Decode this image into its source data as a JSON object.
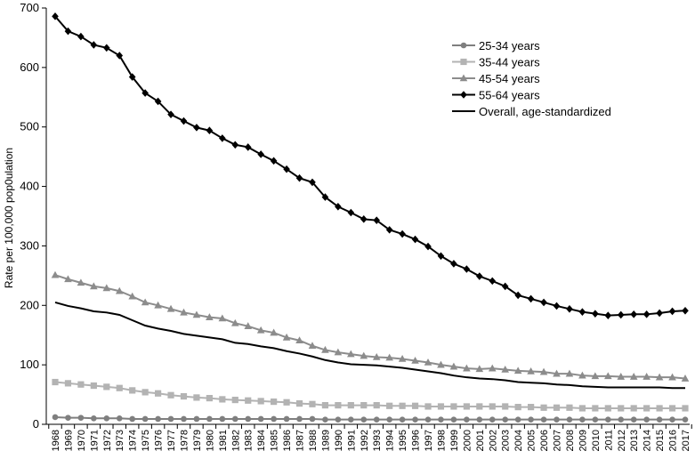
{
  "chart_data": {
    "type": "line",
    "title": "",
    "xlabel": "",
    "ylabel": "Rate per 100,000 pop0ulation",
    "ylim": [
      0,
      700
    ],
    "yticks": [
      0,
      100,
      200,
      300,
      400,
      500,
      600,
      700
    ],
    "grid": false,
    "legend_position": "top-right",
    "x": [
      "1968",
      "1969",
      "1970",
      "1971",
      "1972",
      "1973",
      "1974",
      "1975",
      "1976",
      "1977",
      "1978",
      "1979",
      "1980",
      "1981",
      "1982",
      "1983",
      "1984",
      "1985",
      "1986",
      "1987",
      "1988",
      "1989",
      "1990",
      "1991",
      "1992",
      "1993",
      "1994",
      "1995",
      "1996",
      "1997",
      "1998",
      "1999",
      "2000",
      "2001",
      "2002",
      "2003",
      "2004",
      "2005",
      "2006",
      "2007",
      "2008",
      "2009",
      "2010",
      "2011",
      "2012",
      "2013",
      "2014",
      "2015",
      "2016",
      "2017"
    ],
    "series": [
      {
        "name": "25-34 years",
        "color": "#7f7f7f",
        "marker": "circle",
        "values": [
          12,
          11,
          11,
          10,
          10,
          10,
          9,
          9,
          9,
          9,
          9,
          9,
          9,
          9,
          9,
          9,
          9,
          9,
          9,
          9,
          9,
          8,
          8,
          8,
          8,
          8,
          8,
          8,
          8,
          8,
          8,
          8,
          8,
          8,
          8,
          8,
          8,
          8,
          8,
          8,
          8,
          8,
          8,
          8,
          8,
          8,
          8,
          8,
          8,
          8
        ]
      },
      {
        "name": "35-44 years",
        "color": "#b3b3b3",
        "marker": "square",
        "values": [
          71,
          69,
          67,
          65,
          63,
          61,
          57,
          54,
          52,
          49,
          47,
          45,
          44,
          42,
          41,
          40,
          39,
          38,
          37,
          35,
          34,
          32,
          32,
          32,
          32,
          32,
          31,
          31,
          31,
          30,
          30,
          30,
          30,
          30,
          30,
          30,
          29,
          29,
          28,
          28,
          28,
          27,
          27,
          27,
          27,
          27,
          27,
          27,
          27,
          27
        ]
      },
      {
        "name": "45-54 years",
        "color": "#8c8c8c",
        "marker": "triangle",
        "values": [
          251,
          244,
          238,
          232,
          229,
          224,
          215,
          205,
          200,
          194,
          188,
          184,
          180,
          178,
          170,
          165,
          158,
          154,
          146,
          141,
          132,
          125,
          121,
          118,
          115,
          113,
          112,
          110,
          107,
          104,
          100,
          97,
          94,
          93,
          94,
          92,
          90,
          89,
          88,
          85,
          85,
          82,
          81,
          81,
          80,
          80,
          80,
          79,
          79,
          77
        ]
      },
      {
        "name": "55-64 years",
        "color": "#000000",
        "marker": "diamond",
        "values": [
          686,
          661,
          652,
          638,
          633,
          620,
          584,
          557,
          543,
          521,
          510,
          499,
          494,
          481,
          470,
          466,
          454,
          443,
          429,
          414,
          407,
          382,
          366,
          356,
          345,
          343,
          327,
          320,
          311,
          299,
          283,
          270,
          261,
          249,
          241,
          232,
          217,
          211,
          205,
          199,
          194,
          189,
          186,
          183,
          184,
          185,
          185,
          187,
          190,
          191
        ]
      },
      {
        "name": "Overall, age-standardized",
        "color": "#000000",
        "marker": "none",
        "values": [
          205,
          199,
          195,
          190,
          188,
          184,
          175,
          166,
          161,
          157,
          152,
          149,
          146,
          143,
          137,
          135,
          131,
          128,
          123,
          119,
          114,
          108,
          104,
          101,
          100,
          99,
          97,
          95,
          92,
          89,
          86,
          82,
          79,
          77,
          76,
          74,
          71,
          70,
          69,
          67,
          66,
          64,
          63,
          62,
          62,
          62,
          62,
          62,
          61,
          61
        ]
      }
    ]
  }
}
